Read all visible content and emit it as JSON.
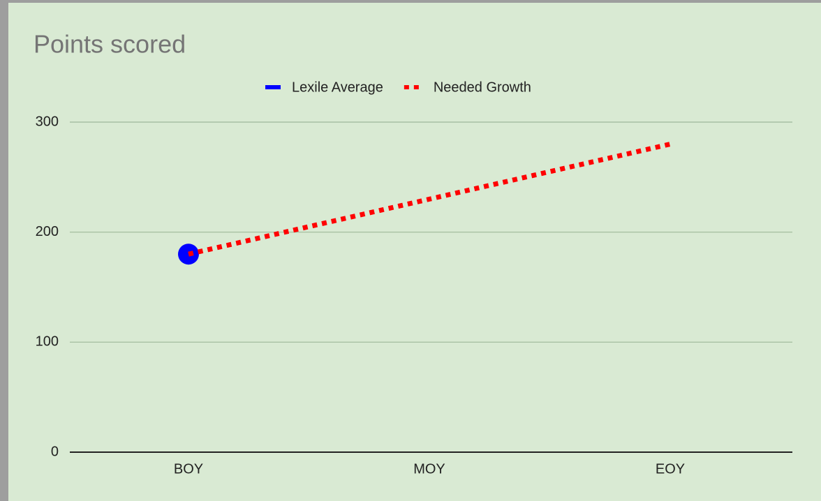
{
  "chart_data": {
    "type": "line",
    "title": "Points scored",
    "categories": [
      "BOY",
      "MOY",
      "EOY"
    ],
    "series": [
      {
        "name": "Lexile Average",
        "color": "#0000ff",
        "values": [
          180,
          null,
          null
        ]
      },
      {
        "name": "Needed Growth",
        "color": "#ff0000",
        "values": [
          180,
          230,
          280
        ]
      }
    ],
    "ylim": [
      0,
      300
    ],
    "yticks": [
      0,
      100,
      200,
      300
    ],
    "grid": true,
    "legend": "top"
  }
}
